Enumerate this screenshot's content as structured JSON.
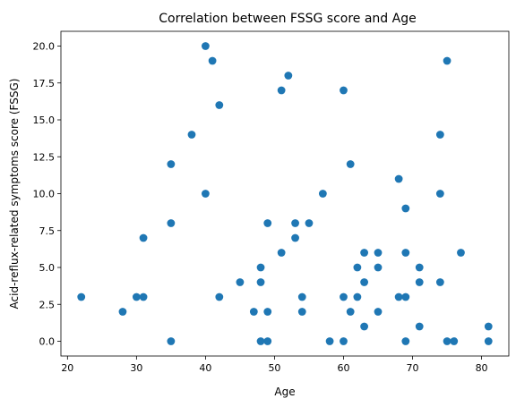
{
  "chart_data": {
    "type": "scatter",
    "title": "Correlation between FSSG score and Age",
    "xlabel": "Age",
    "ylabel": "Acid-reflux-related symptoms score (FSSG)",
    "xlim": [
      19.05,
      83.95
    ],
    "ylim": [
      -1.0,
      21.0
    ],
    "xticks": [
      20,
      30,
      40,
      50,
      60,
      70,
      80
    ],
    "xtick_labels": [
      "20",
      "30",
      "40",
      "50",
      "60",
      "70",
      "80"
    ],
    "yticks": [
      0,
      2.5,
      5,
      7.5,
      10,
      12.5,
      15,
      17.5,
      20
    ],
    "ytick_labels": [
      "0.0",
      "2.5",
      "5.0",
      "7.5",
      "10.0",
      "12.5",
      "15.0",
      "17.5",
      "20.0"
    ],
    "grid": false,
    "legend": "none",
    "series": [
      {
        "color": "#1f77b4",
        "points": [
          [
            22,
            3
          ],
          [
            28,
            2
          ],
          [
            30,
            3
          ],
          [
            31,
            3
          ],
          [
            31,
            7
          ],
          [
            35,
            0
          ],
          [
            35,
            8
          ],
          [
            35,
            12
          ],
          [
            38,
            14
          ],
          [
            40,
            20
          ],
          [
            40,
            10
          ],
          [
            41,
            19
          ],
          [
            42,
            16
          ],
          [
            42,
            3
          ],
          [
            45,
            4
          ],
          [
            47,
            2
          ],
          [
            48,
            0
          ],
          [
            48,
            4
          ],
          [
            48,
            5
          ],
          [
            49,
            0
          ],
          [
            49,
            2
          ],
          [
            49,
            8
          ],
          [
            51,
            17
          ],
          [
            51,
            6
          ],
          [
            52,
            18
          ],
          [
            53,
            8
          ],
          [
            53,
            7
          ],
          [
            54,
            3
          ],
          [
            54,
            2
          ],
          [
            55,
            8
          ],
          [
            57,
            10
          ],
          [
            58,
            0
          ],
          [
            60,
            17
          ],
          [
            60,
            3
          ],
          [
            60,
            0
          ],
          [
            61,
            12
          ],
          [
            61,
            2
          ],
          [
            62,
            5
          ],
          [
            62,
            3
          ],
          [
            63,
            6
          ],
          [
            63,
            4
          ],
          [
            63,
            1
          ],
          [
            65,
            6
          ],
          [
            65,
            5
          ],
          [
            65,
            2
          ],
          [
            68,
            11
          ],
          [
            68,
            3
          ],
          [
            69,
            9
          ],
          [
            69,
            6
          ],
          [
            69,
            3
          ],
          [
            69,
            0
          ],
          [
            71,
            5
          ],
          [
            71,
            4
          ],
          [
            71,
            1
          ],
          [
            74,
            14
          ],
          [
            74,
            10
          ],
          [
            74,
            4
          ],
          [
            75,
            19
          ],
          [
            75,
            0
          ],
          [
            76,
            0
          ],
          [
            77,
            6
          ],
          [
            81,
            1
          ],
          [
            81,
            0
          ]
        ]
      }
    ]
  }
}
